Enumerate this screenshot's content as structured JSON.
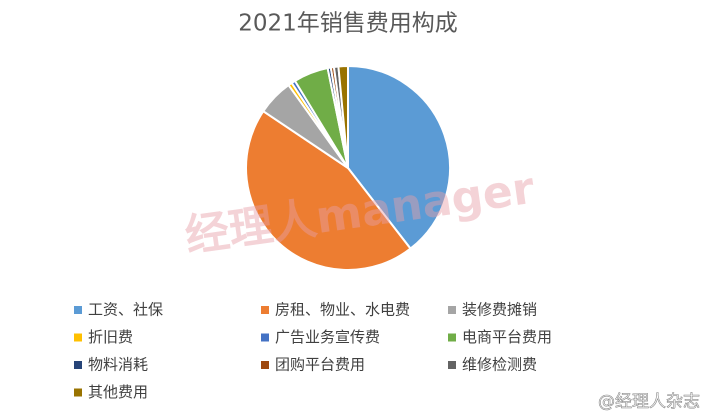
{
  "chart_data": {
    "type": "pie",
    "title": "2021年销售费用构成",
    "categories": [
      "工资、社保",
      "房租、物业、水电费",
      "装修费摊销",
      "折旧费",
      "广告业务宣传费",
      "电商平台费用",
      "物料消耗",
      "团购平台费用",
      "维修检测费",
      "其他费用"
    ],
    "values": [
      39.5,
      44.9,
      5.7,
      0.6,
      0.6,
      5.5,
      0.5,
      0.5,
      0.7,
      1.5
    ],
    "colors": [
      "#5b9bd5",
      "#ed7d31",
      "#a5a5a5",
      "#ffc000",
      "#4472c4",
      "#70ad47",
      "#264478",
      "#9e480e",
      "#636363",
      "#997300"
    ],
    "watermark": "经理人manager",
    "source": "@经理人杂志"
  }
}
